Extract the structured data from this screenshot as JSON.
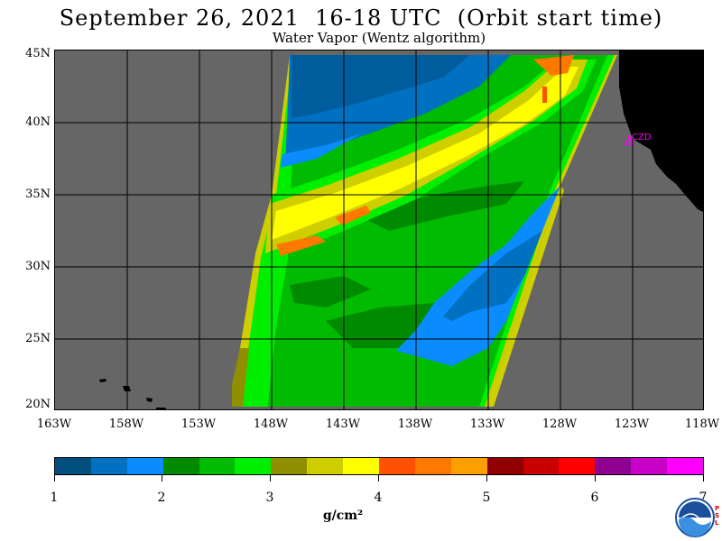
{
  "title": "September 26, 2021  16-18 UTC  (Orbit start time)",
  "subtitle": "Water Vapor (Wentz algorithm)",
  "map": {
    "lat_labels": [
      "45N",
      "40N",
      "35N",
      "30N",
      "25N",
      "20N"
    ],
    "lon_labels": [
      "163W",
      "158W",
      "153W",
      "148W",
      "143W",
      "138W",
      "133W",
      "128W",
      "123W",
      "118W"
    ],
    "station_label": "CZD",
    "colors": {
      "no_data": "#666666",
      "land": "#000000",
      "station": "#ff00ff"
    }
  },
  "colorbar": {
    "tick_labels": [
      "1",
      "2",
      "3",
      "4",
      "5",
      "6",
      "7"
    ],
    "units": "g/cm²",
    "colors": [
      "#004f7f",
      "#0070c0",
      "#0a8cff",
      "#008a00",
      "#00bb00",
      "#00ef00",
      "#8f8f00",
      "#cfcf00",
      "#ffff00",
      "#ff5000",
      "#ff7800",
      "#ffa000",
      "#900000",
      "#c80000",
      "#ff0000",
      "#900090",
      "#c800c8",
      "#ff00ff"
    ]
  },
  "logo": {
    "name": "NOAA",
    "side_text": "PSL"
  }
}
